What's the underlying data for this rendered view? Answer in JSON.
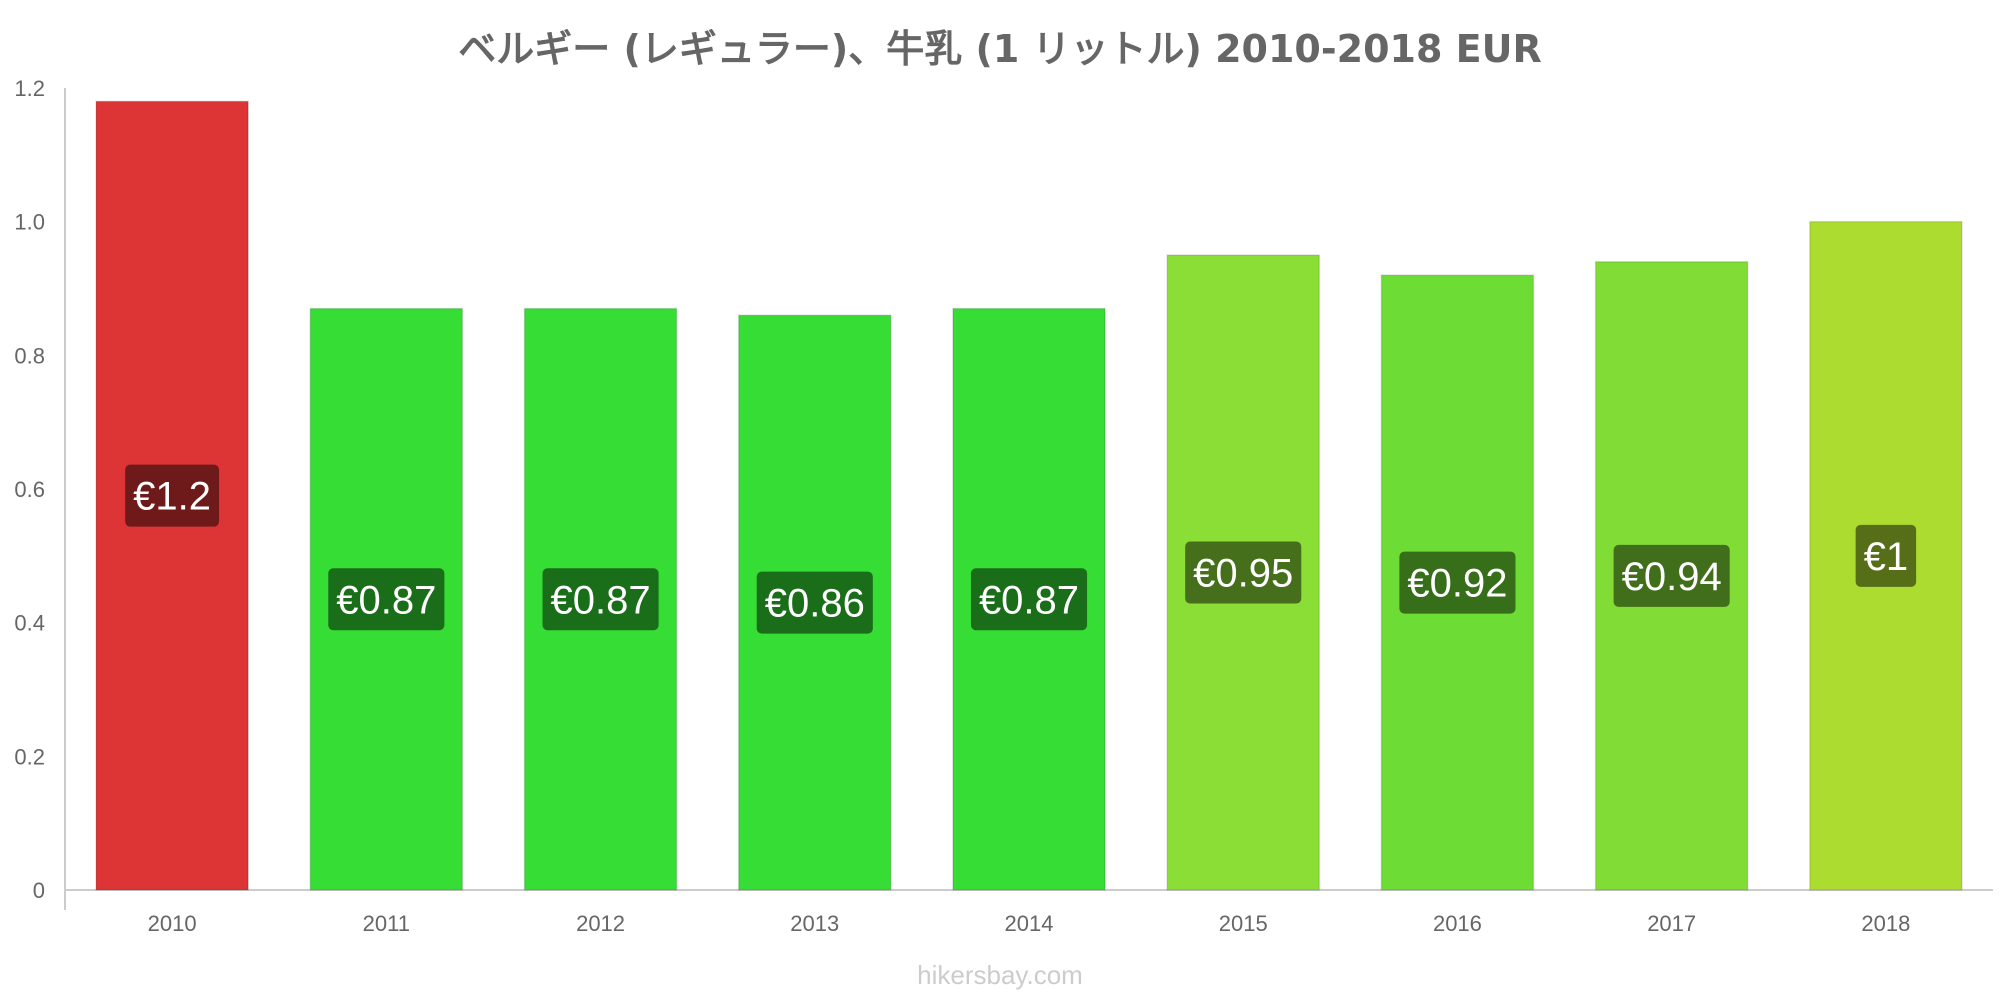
{
  "chart_data": {
    "type": "bar",
    "title": "ベルギー (レギュラー)、牛乳 (1 リットル) 2010-2018 EUR",
    "xlabel": "",
    "ylabel": "",
    "categories": [
      "2010",
      "2011",
      "2012",
      "2013",
      "2014",
      "2015",
      "2016",
      "2017",
      "2018"
    ],
    "values": [
      1.18,
      0.87,
      0.87,
      0.86,
      0.87,
      0.95,
      0.92,
      0.94,
      1.0
    ],
    "data_labels": [
      "€1.2",
      "€0.87",
      "€0.87",
      "€0.86",
      "€0.87",
      "€0.95",
      "€0.92",
      "€0.94",
      "€1"
    ],
    "bar_colors": [
      "#dd3535",
      "#35dd35",
      "#35dd35",
      "#35dd35",
      "#35dd35",
      "#8ade35",
      "#6ddd35",
      "#81dd35",
      "#acdc30"
    ],
    "label_colors": [
      "#6e1a1a",
      "#1a6e1a",
      "#1a6e1a",
      "#1a6e1a",
      "#1a6e1a",
      "#456f1a",
      "#366e1a",
      "#406e1a",
      "#566e18"
    ],
    "ylim": [
      0,
      1.2
    ],
    "yticks": [
      "0",
      "0.2",
      "0.4",
      "0.6",
      "0.8",
      "1.0",
      "1.2"
    ],
    "grid": false,
    "legend": "none"
  },
  "watermark": "hikersbay.com"
}
